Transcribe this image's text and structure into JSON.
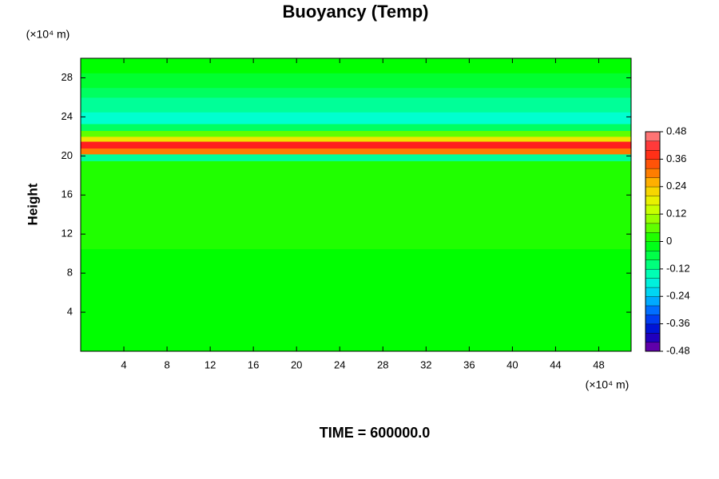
{
  "chart_data": {
    "type": "heatmap",
    "title": "Buoyancy (Temp)",
    "y_label": "Height",
    "x_unit": "(×10⁴ m)",
    "y_unit": "(×10⁴ m)",
    "footer": "TIME = 600000.0",
    "xlim": [
      0,
      51
    ],
    "ylim": [
      0,
      30
    ],
    "xticks": [
      4,
      8,
      12,
      16,
      20,
      24,
      28,
      32,
      36,
      40,
      44,
      48
    ],
    "yticks": [
      4,
      8,
      12,
      16,
      20,
      24,
      28
    ],
    "y_edges": [
      0,
      10.5,
      17,
      19.5,
      20.2,
      20.8,
      21.5,
      22,
      22.6,
      23.3,
      24.5,
      26,
      27,
      28.5,
      30
    ],
    "values": [
      0,
      0.02,
      0.02,
      -0.12,
      0.3,
      0.4,
      0.2,
      0.06,
      -0.08,
      -0.16,
      -0.12,
      -0.08,
      -0.04,
      0
    ],
    "clim": [
      -0.48,
      0.48
    ],
    "cticks": [
      -0.48,
      -0.36,
      -0.24,
      -0.12,
      0,
      0.12,
      0.24,
      0.36,
      0.48
    ],
    "colormap": [
      "#7f00a0",
      "#0000c8",
      "#0050ff",
      "#00c8ff",
      "#00ffd0",
      "#00ff60",
      "#00ff00",
      "#80ff00",
      "#e0ff00",
      "#ffc800",
      "#ff6400",
      "#ff1e1e",
      "#ff9090"
    ]
  }
}
